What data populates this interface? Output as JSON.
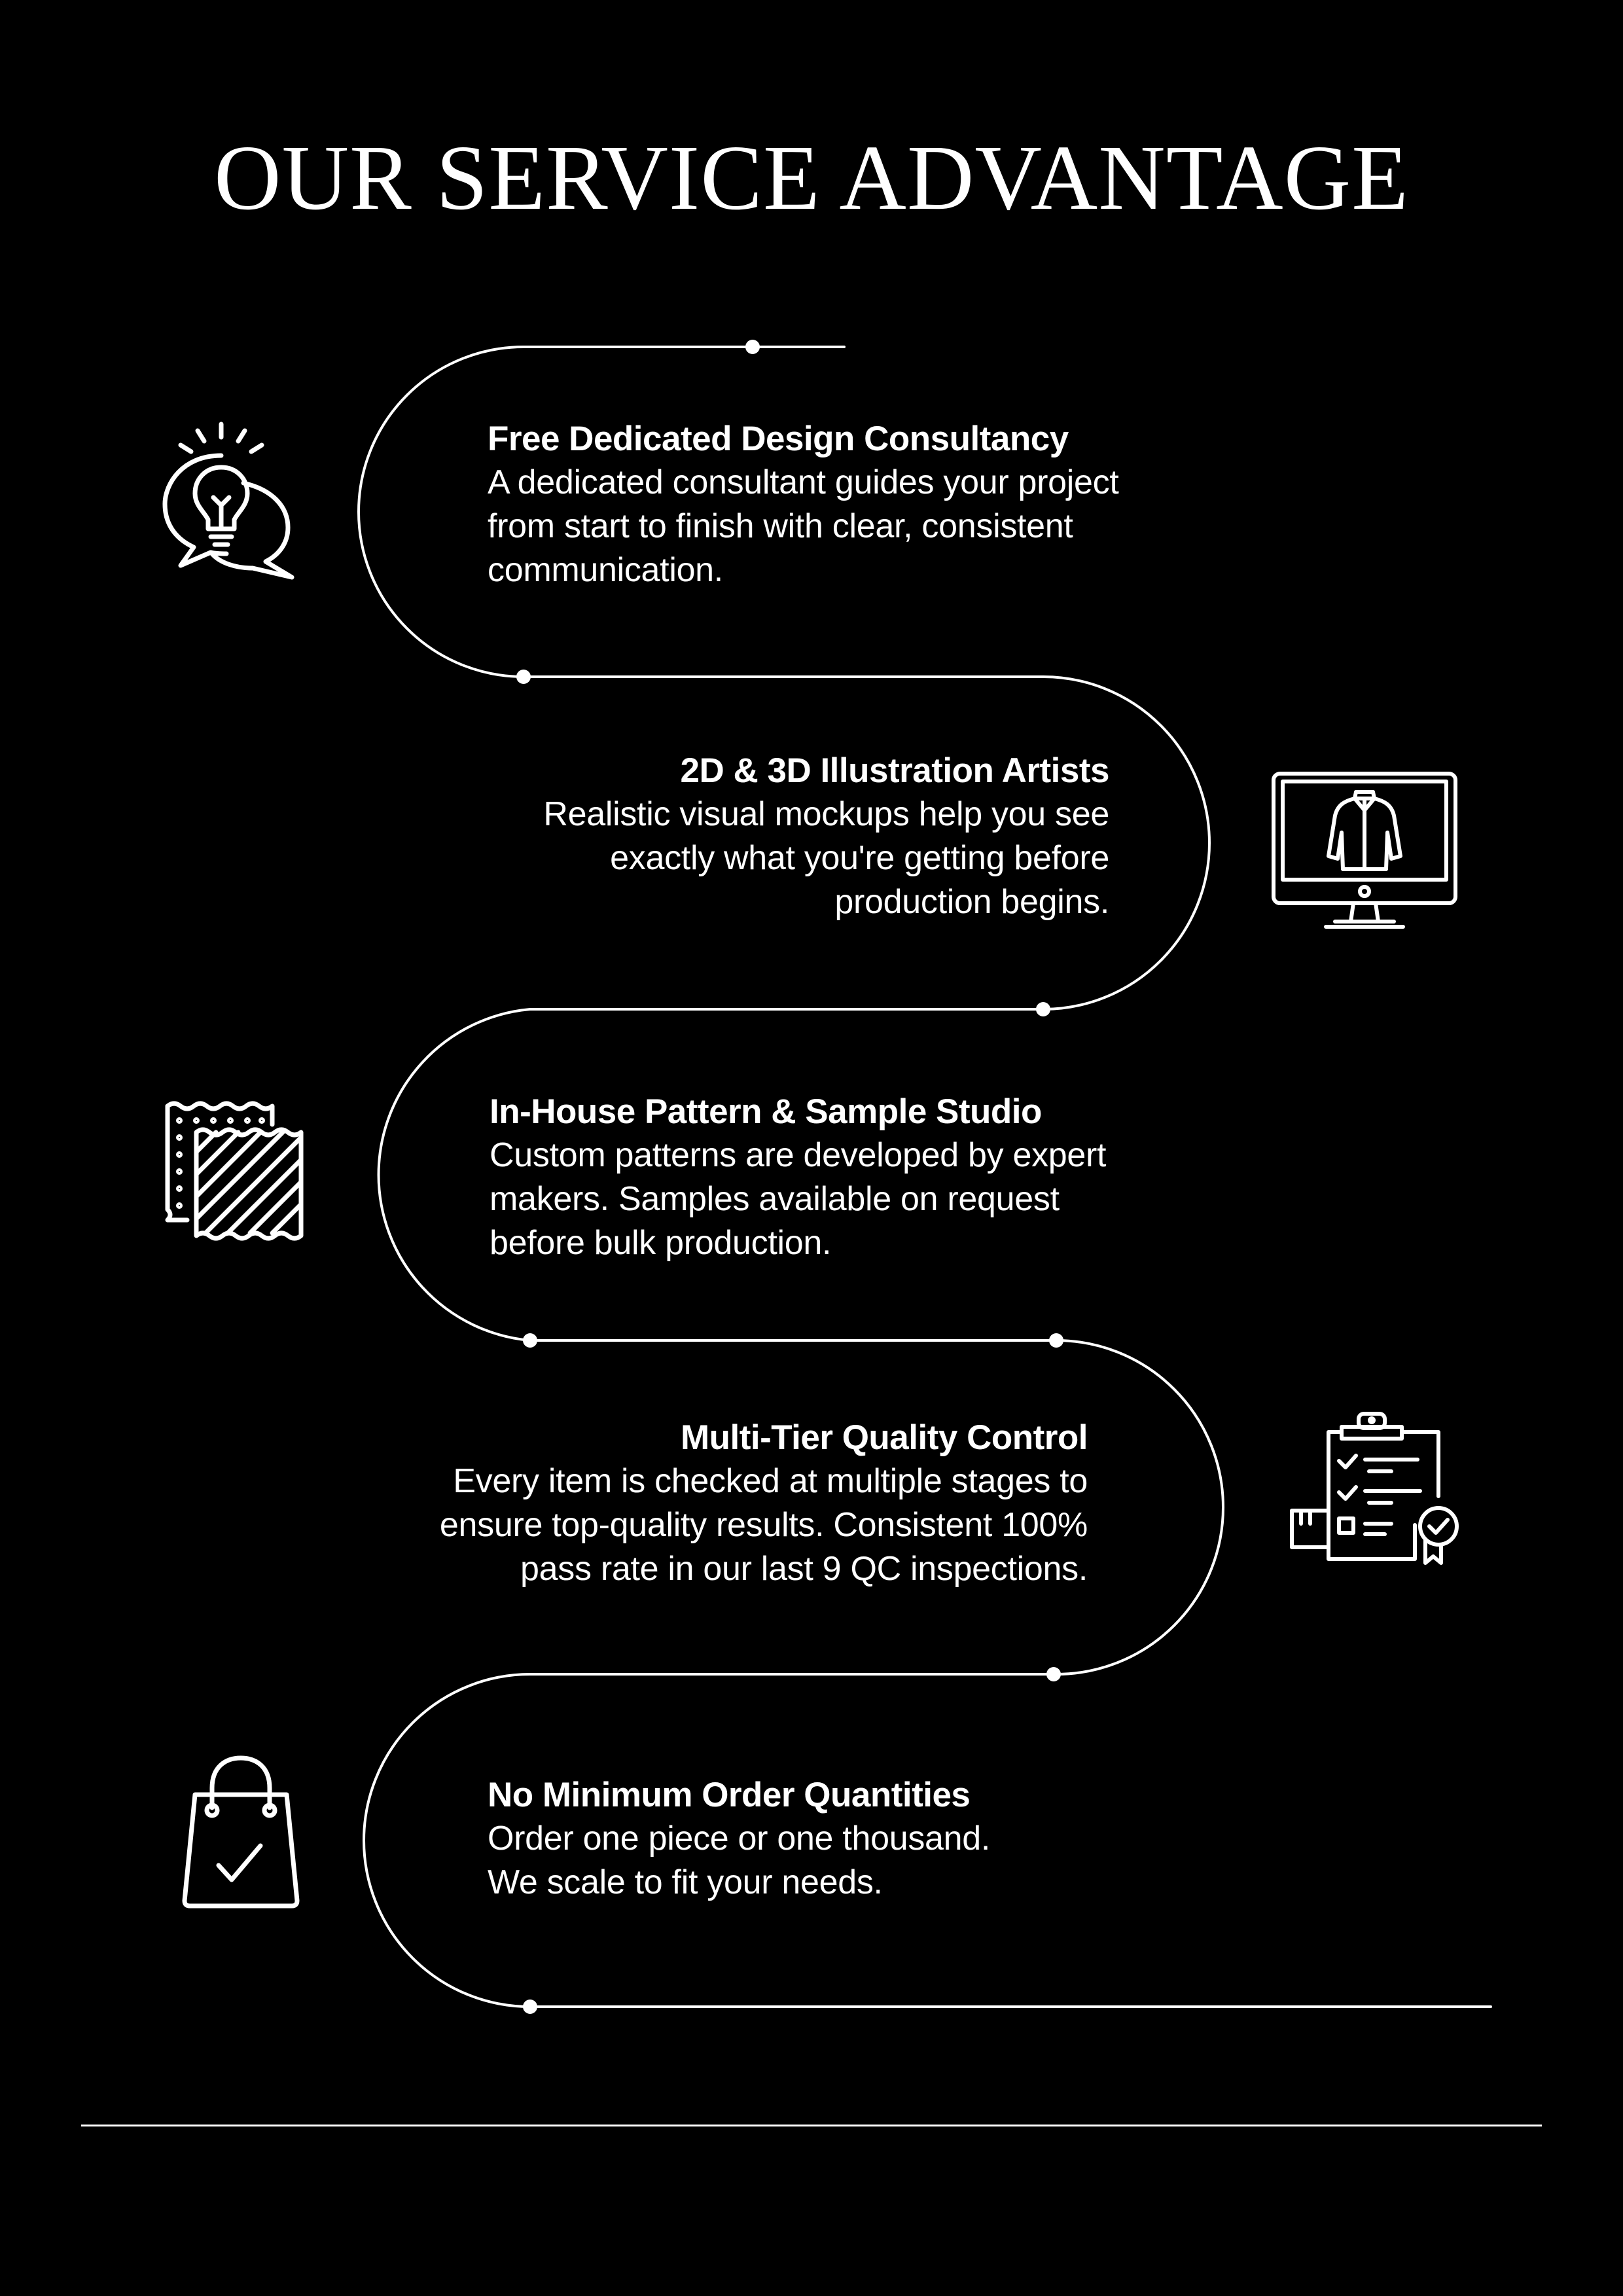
{
  "page": {
    "title": "OUR SERVICE ADVANTAGE",
    "background_color": "#000000",
    "foreground_color": "#ffffff"
  },
  "items": [
    {
      "title": "Free Dedicated Design Consultancy",
      "description": [
        "A dedicated consultant guides your project",
        "from start to finish with clear, consistent",
        "communication."
      ],
      "icon": "lightbulb-speech-bubble-icon"
    },
    {
      "title": "2D & 3D Illustration Artists",
      "description": [
        "Realistic visual mockups help you see",
        "exactly what you're getting before",
        "production begins."
      ],
      "icon": "monitor-jacket-icon"
    },
    {
      "title": "In-House Pattern & Sample Studio",
      "description": [
        "Custom patterns are developed by expert",
        "makers. Samples available on request",
        "before bulk production."
      ],
      "icon": "fabric-swatch-icon"
    },
    {
      "title": "Multi-Tier Quality Control",
      "description": [
        "Every item is checked at multiple stages to",
        "ensure top-quality results. Consistent 100%",
        "pass rate in our last 9 QC inspections."
      ],
      "icon": "clipboard-checklist-icon"
    },
    {
      "title": "No Minimum Order Quantities",
      "description": [
        "Order one piece or one thousand.",
        "We scale to fit your needs."
      ],
      "icon": "shopping-bag-check-icon"
    }
  ]
}
